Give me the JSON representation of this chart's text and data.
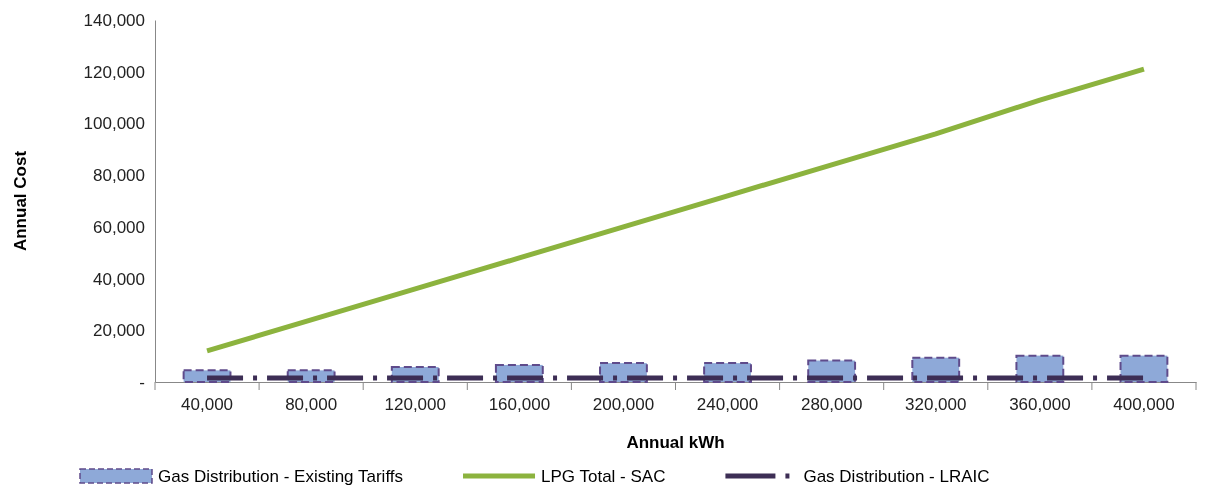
{
  "chart_data": {
    "type": "bar",
    "xlabel": "Annual kWh",
    "ylabel": "Annual Cost",
    "categories": [
      "40,000",
      "80,000",
      "120,000",
      "160,000",
      "200,000",
      "240,000",
      "280,000",
      "320,000",
      "360,000",
      "400,000"
    ],
    "series": [
      {
        "name": "Gas Distribution - Existing Tariffs",
        "color": "#8ea9d8",
        "values": [
          4500,
          4500,
          5800,
          6600,
          7300,
          7300,
          8300,
          9400,
          10200,
          10200
        ]
      },
      {
        "name": "LPG Total - SAC",
        "type": "line",
        "color": "#8cb33e",
        "values": [
          12000,
          24000,
          36000,
          48000,
          60000,
          72000,
          84000,
          96000,
          109000,
          121000
        ]
      },
      {
        "name": "Gas Distribution - LRAIC",
        "type": "line",
        "color": "#3d2e55",
        "line_style": "dashed",
        "values": [
          1500,
          1500,
          1500,
          1500,
          1500,
          1500,
          1500,
          1500,
          1500,
          1500
        ]
      }
    ],
    "ylim": [
      0,
      140000
    ],
    "yticks": [
      {
        "value": 0,
        "label": "-"
      },
      {
        "value": 20000,
        "label": "20,000"
      },
      {
        "value": 40000,
        "label": "40,000"
      },
      {
        "value": 60000,
        "label": "60,000"
      },
      {
        "value": 80000,
        "label": "80,000"
      },
      {
        "value": 100000,
        "label": "100,000"
      },
      {
        "value": 120000,
        "label": "120,000"
      },
      {
        "value": 140000,
        "label": "140,000"
      }
    ],
    "grid": false,
    "legend": "bottom"
  }
}
